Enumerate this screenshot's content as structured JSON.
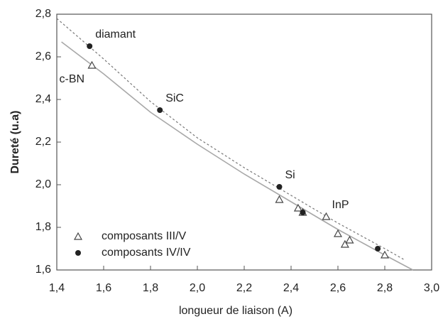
{
  "chart_data": {
    "type": "scatter",
    "xlabel": "longueur de liaison (A)",
    "ylabel": "Dureté (u.a)",
    "xlim": [
      1.4,
      3.0
    ],
    "ylim": [
      1.6,
      2.8
    ],
    "xticks": [
      {
        "value": 1.4,
        "label": "1,4"
      },
      {
        "value": 1.6,
        "label": "1,6"
      },
      {
        "value": 1.8,
        "label": "1,8"
      },
      {
        "value": 2.0,
        "label": "2,0"
      },
      {
        "value": 2.2,
        "label": "2,2"
      },
      {
        "value": 2.4,
        "label": "2,4"
      },
      {
        "value": 2.6,
        "label": "2,6"
      },
      {
        "value": 2.8,
        "label": "2,8"
      },
      {
        "value": 3.0,
        "label": "3,0"
      }
    ],
    "yticks": [
      {
        "value": 1.6,
        "label": "1,6"
      },
      {
        "value": 1.8,
        "label": "1,8"
      },
      {
        "value": 2.0,
        "label": "2,0"
      },
      {
        "value": 2.2,
        "label": "2,2"
      },
      {
        "value": 2.4,
        "label": "2,4"
      },
      {
        "value": 2.6,
        "label": "2,6"
      },
      {
        "value": 2.8,
        "label": "2,8"
      }
    ],
    "legend": "lower left",
    "series": [
      {
        "name": "composants III/V",
        "marker": "triangle",
        "color": "#444444",
        "x": [
          1.55,
          2.35,
          2.43,
          2.45,
          2.55,
          2.6,
          2.63,
          2.65,
          2.8
        ],
        "values": [
          2.56,
          1.93,
          1.89,
          1.87,
          1.85,
          1.77,
          1.72,
          1.74,
          1.67
        ],
        "labels": [
          "c-BN",
          null,
          null,
          null,
          "InP",
          null,
          null,
          null,
          null
        ]
      },
      {
        "name": "composants IV/IV",
        "marker": "circle",
        "color": "#222222",
        "x": [
          1.54,
          1.84,
          2.35,
          2.45,
          2.77
        ],
        "values": [
          2.65,
          2.35,
          1.99,
          1.87,
          1.7
        ],
        "labels": [
          "diamant",
          "SiC",
          "Si",
          null,
          null
        ]
      }
    ],
    "fits": [
      {
        "style": "solid",
        "color": "#a8a8a8",
        "x": [
          1.42,
          1.6,
          1.8,
          2.0,
          2.2,
          2.4,
          2.6,
          2.8,
          2.92
        ],
        "values": [
          2.67,
          2.52,
          2.34,
          2.19,
          2.05,
          1.92,
          1.79,
          1.67,
          1.6
        ]
      },
      {
        "style": "dashed",
        "color": "#777777",
        "x": [
          1.4,
          1.6,
          1.8,
          2.0,
          2.2,
          2.4,
          2.6,
          2.8,
          2.88
        ],
        "values": [
          2.78,
          2.59,
          2.39,
          2.22,
          2.08,
          1.95,
          1.82,
          1.7,
          1.65
        ]
      }
    ]
  }
}
